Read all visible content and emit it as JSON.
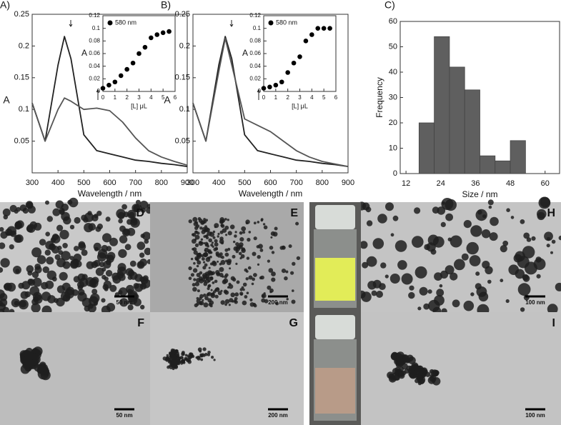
{
  "chart_data": [
    {
      "type": "line",
      "panel_label": "A)",
      "xlabel": "Wavelength / nm",
      "ylabel": "A",
      "x": [
        300,
        350,
        400,
        425,
        450,
        500,
        550,
        600,
        650,
        700,
        750,
        800,
        850,
        900
      ],
      "series": [
        {
          "color": "#222222",
          "values": [
            0.11,
            0.05,
            0.17,
            0.215,
            0.18,
            0.06,
            0.035,
            0.03,
            0.025,
            0.02,
            0.018,
            0.015,
            0.013,
            0.01
          ]
        },
        {
          "color": "#555555",
          "values": [
            0.11,
            0.05,
            0.1,
            0.118,
            0.113,
            0.1,
            0.102,
            0.098,
            0.08,
            0.055,
            0.035,
            0.025,
            0.018,
            0.012
          ]
        }
      ],
      "xlim": [
        300,
        900
      ],
      "xticks": [
        300,
        400,
        500,
        600,
        700,
        800,
        900
      ],
      "ylim": [
        0,
        0.25
      ],
      "yticks": [
        0.05,
        0.1,
        0.15,
        0.2,
        0.25
      ]
    },
    {
      "type": "scatter",
      "xlabel": "[L] μL",
      "ylabel": "A",
      "x": [
        0,
        0.5,
        1,
        1.5,
        2,
        2.5,
        3,
        3.5,
        4,
        4.5,
        5,
        5.5
      ],
      "series": [
        {
          "name": "580 nm",
          "color": "#000000",
          "values": [
            0.005,
            0.01,
            0.015,
            0.025,
            0.035,
            0.045,
            0.06,
            0.07,
            0.085,
            0.09,
            0.093,
            0.095
          ]
        }
      ],
      "xlim": [
        0,
        6
      ],
      "xticks": [
        0,
        1,
        2,
        3,
        4,
        5,
        6
      ],
      "ylim": [
        0,
        0.12
      ],
      "yticks": [
        0,
        0.02,
        0.04,
        0.06,
        0.08,
        0.1,
        0.12
      ]
    },
    {
      "type": "line",
      "panel_label": "B)",
      "xlabel": "Wavelength / nm",
      "ylabel": "A",
      "x": [
        300,
        350,
        400,
        425,
        450,
        500,
        550,
        600,
        650,
        700,
        750,
        800,
        850,
        900
      ],
      "series": [
        {
          "color": "#222222",
          "values": [
            0.11,
            0.05,
            0.17,
            0.215,
            0.18,
            0.06,
            0.035,
            0.03,
            0.025,
            0.02,
            0.018,
            0.015,
            0.013,
            0.01
          ]
        },
        {
          "color": "#555555",
          "values": [
            0.11,
            0.05,
            0.16,
            0.212,
            0.17,
            0.085,
            0.075,
            0.065,
            0.05,
            0.035,
            0.025,
            0.018,
            0.014,
            0.01
          ]
        }
      ],
      "xlim": [
        300,
        900
      ],
      "xticks": [
        300,
        400,
        500,
        600,
        700,
        800,
        900
      ],
      "ylim": [
        0,
        0.25
      ],
      "yticks": [
        0.05,
        0.1,
        0.15,
        0.2,
        0.25
      ]
    },
    {
      "type": "scatter",
      "xlabel": "[L] μL",
      "ylabel": "A",
      "x": [
        0,
        0.5,
        1,
        1.5,
        2,
        2.5,
        3,
        3.5,
        4,
        4.5,
        5,
        5.5
      ],
      "series": [
        {
          "name": "580 nm",
          "color": "#000000",
          "values": [
            0.005,
            0.007,
            0.01,
            0.015,
            0.03,
            0.045,
            0.055,
            0.08,
            0.09,
            0.1,
            0.1,
            0.1
          ]
        }
      ],
      "xlim": [
        0,
        6
      ],
      "xticks": [
        0,
        1,
        2,
        3,
        4,
        5,
        6
      ],
      "ylim": [
        0,
        0.12
      ],
      "yticks": [
        0,
        0.02,
        0.04,
        0.06,
        0.08,
        0.1,
        0.12
      ]
    },
    {
      "type": "histogram",
      "panel_label": "C)",
      "xlabel": "Size / nm",
      "ylabel": "Frequency",
      "bins": [
        16.5,
        21.75,
        27,
        32.25,
        37.5,
        42.75,
        48,
        53.25
      ],
      "counts": [
        20,
        54,
        42,
        33,
        7,
        5,
        13
      ],
      "color": "#5f5f5f",
      "xlim": [
        10,
        65
      ],
      "xticks": [
        12,
        24,
        36,
        48,
        60
      ],
      "ylim": [
        0,
        60
      ],
      "yticks": [
        0,
        10,
        20,
        30,
        40,
        50,
        60
      ]
    }
  ],
  "images": [
    {
      "label": "D",
      "scale": "50 nm"
    },
    {
      "label": "E",
      "scale": "200 nm"
    },
    {
      "label": "H",
      "scale": "100 nm"
    },
    {
      "label": "F",
      "scale": "50 nm"
    },
    {
      "label": "G",
      "scale": "200 nm"
    },
    {
      "label": "I",
      "scale": "100 nm"
    }
  ]
}
